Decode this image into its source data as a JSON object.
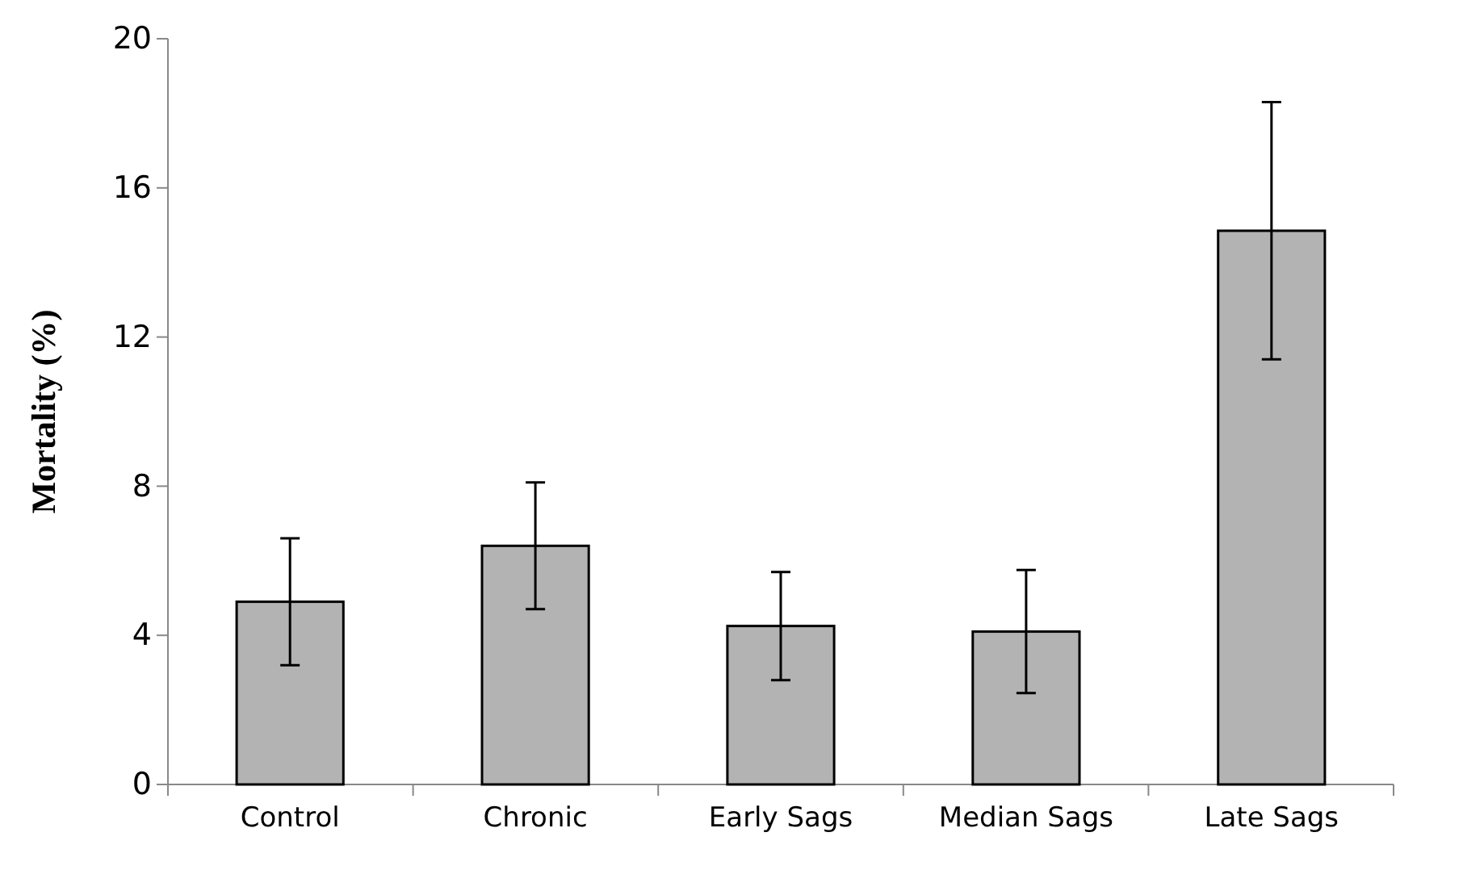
{
  "chart_data": {
    "type": "bar",
    "ylabel": "Mortality (%)",
    "categories": [
      "Control",
      "Chronic",
      "Early Sags",
      "Median Sags",
      "Late Sags"
    ],
    "values": [
      4.9,
      6.4,
      4.25,
      4.1,
      14.85
    ],
    "errors": [
      1.7,
      1.7,
      1.45,
      1.65,
      3.45
    ],
    "color": "#b3b3b3",
    "ylim": [
      0,
      20
    ],
    "yticks": [
      0,
      4,
      8,
      12,
      16,
      20
    ],
    "grid": false
  }
}
